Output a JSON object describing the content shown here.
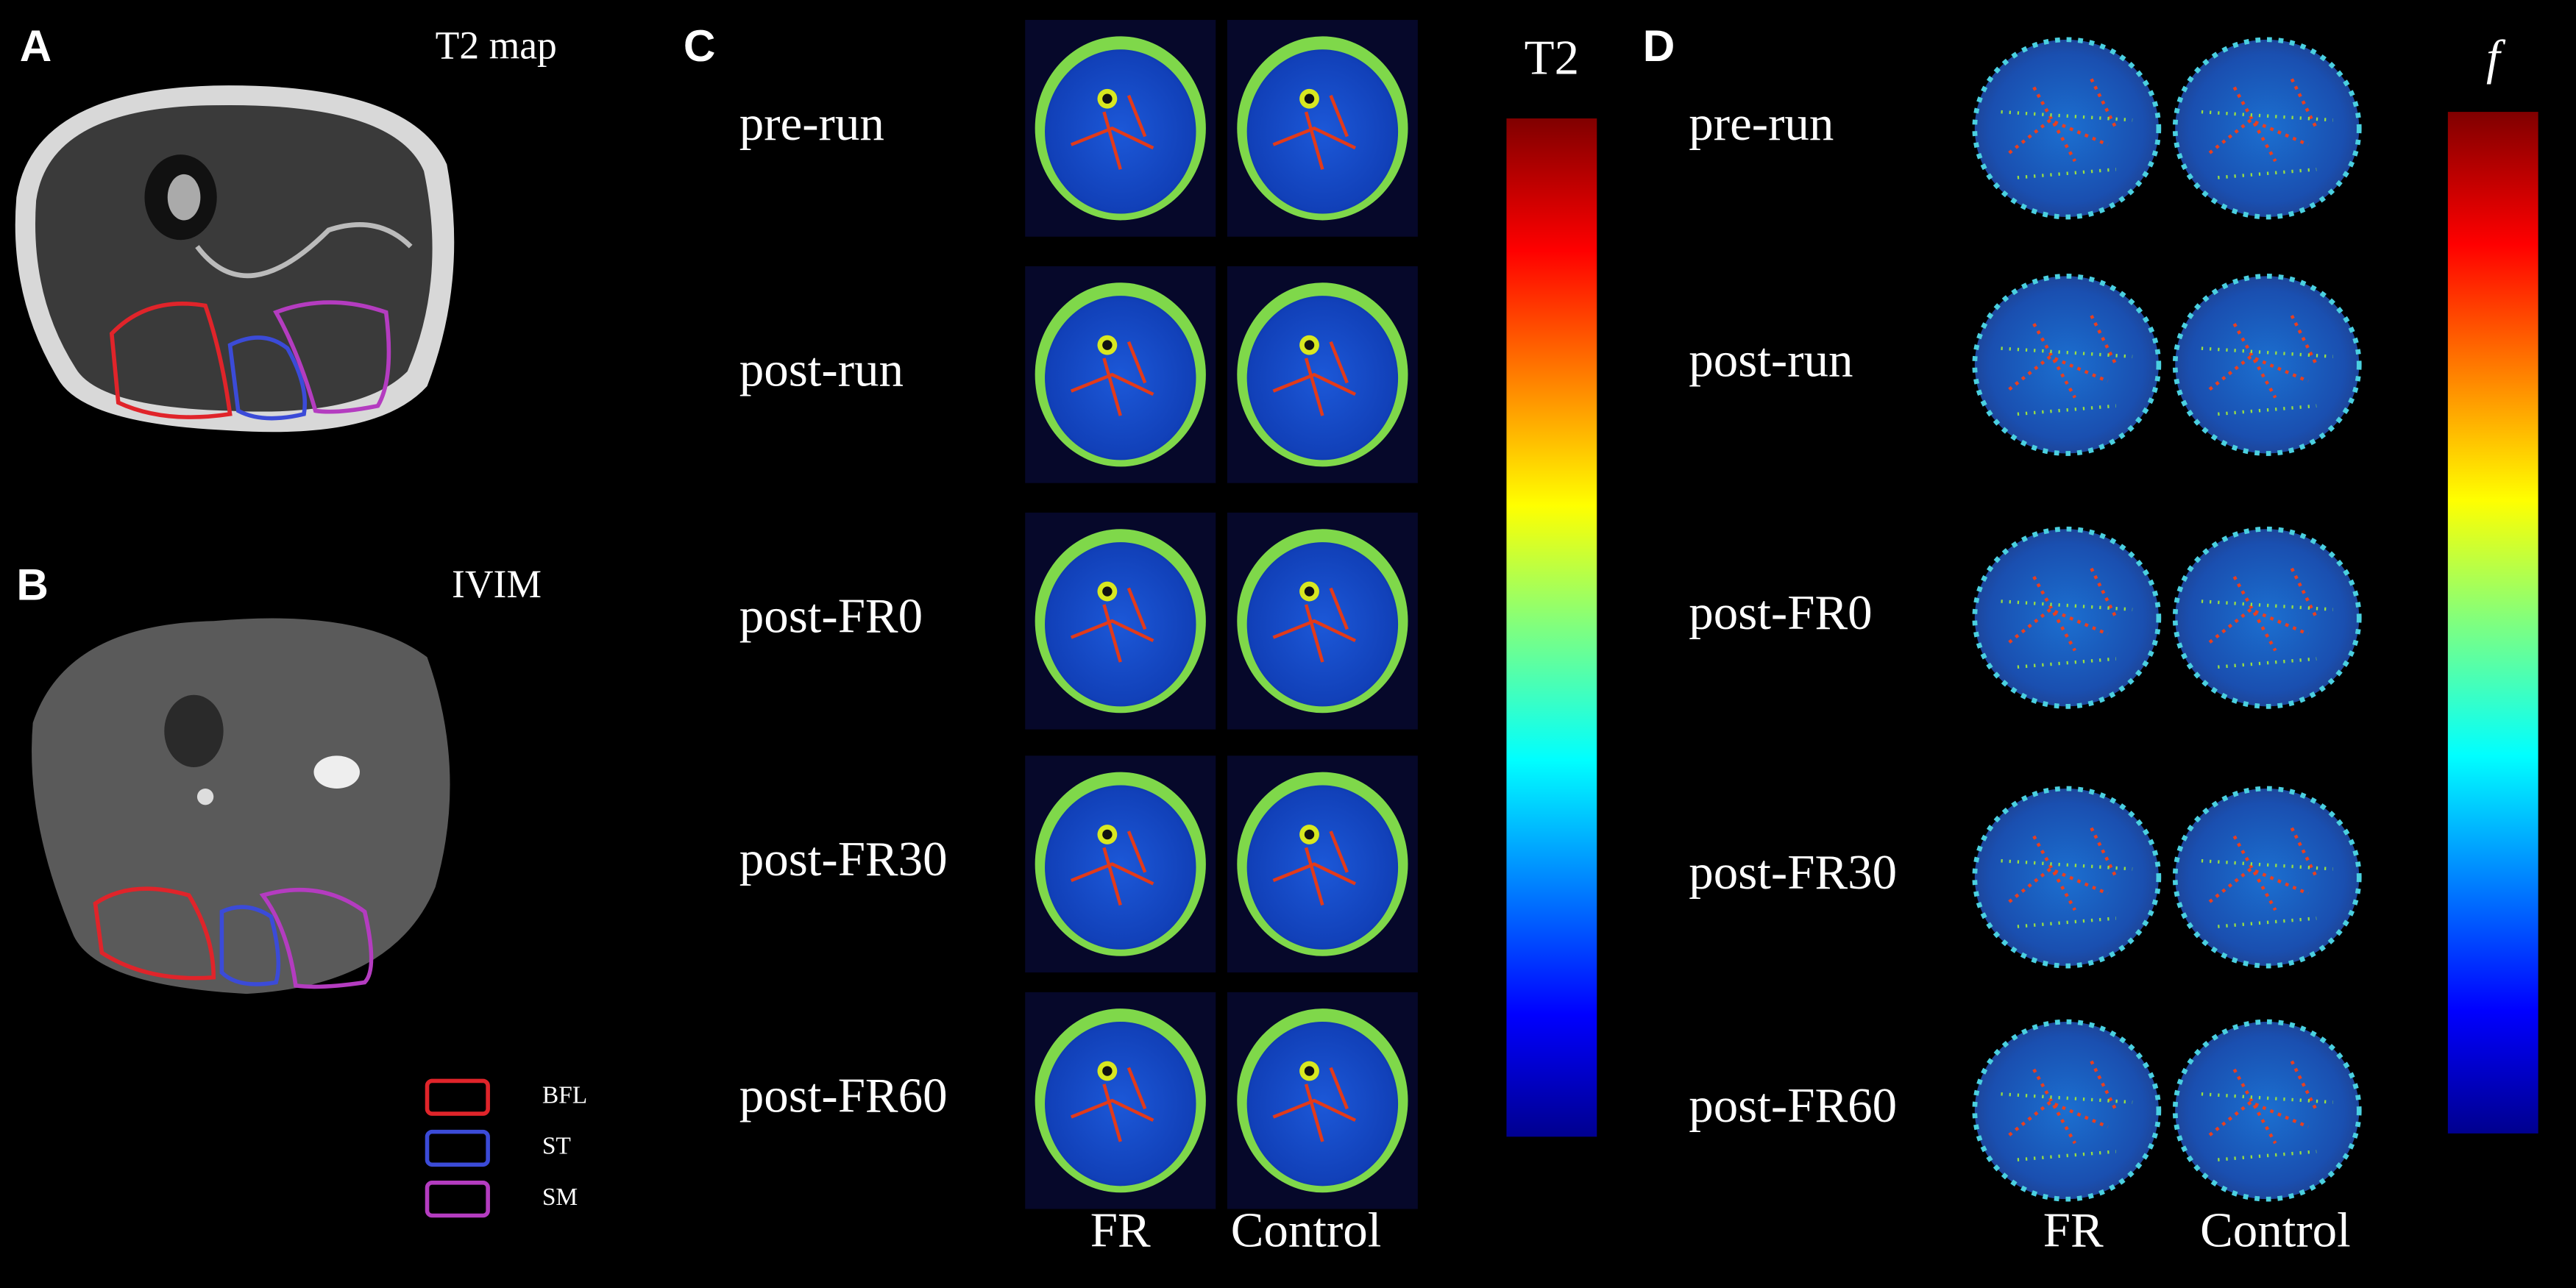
{
  "panel_a": {
    "label": "A",
    "title": "T2 map"
  },
  "panel_b": {
    "label": "B",
    "title": "IVIM"
  },
  "legend": [
    {
      "label": "BFL",
      "color": "#e0242a"
    },
    {
      "label": "ST",
      "color": "#3b4bd8"
    },
    {
      "label": "SM",
      "color": "#b43cc0"
    }
  ],
  "panel_c": {
    "label": "C",
    "colorbar_label": "T2",
    "rows": [
      "pre-run",
      "post-run",
      "post-FR0",
      "post-FR30",
      "post-FR60"
    ],
    "columns": [
      "FR",
      "Control"
    ]
  },
  "panel_d": {
    "label": "D",
    "colorbar_label": "f",
    "rows": [
      "pre-run",
      "post-run",
      "post-FR0",
      "post-FR30",
      "post-FR60"
    ],
    "columns": [
      "FR",
      "Control"
    ]
  }
}
